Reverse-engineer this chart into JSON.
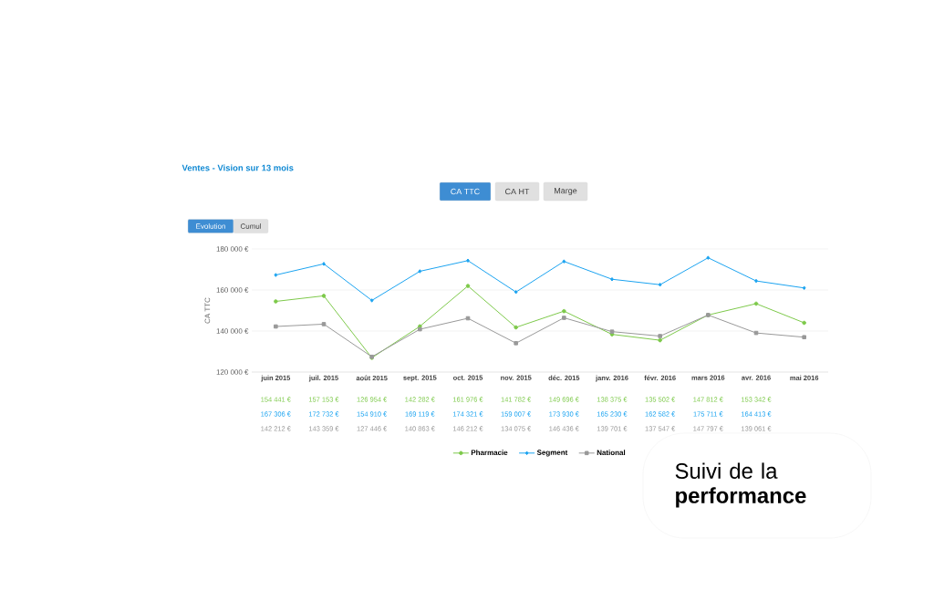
{
  "chart_data": {
    "type": "line",
    "title": "Ventes - Vision sur 13 mois",
    "ylabel": "CA TTC",
    "categories": [
      "juin 2015",
      "juil. 2015",
      "août 2015",
      "sept. 2015",
      "oct. 2015",
      "nov. 2015",
      "déc. 2015",
      "janv. 2016",
      "févr. 2016",
      "mars 2016",
      "avr. 2016",
      "mai 2016"
    ],
    "series": [
      {
        "name": "Pharmacie",
        "color": "#7dc94a",
        "marker": "circle",
        "values": [
          154441,
          157153,
          126954,
          142282,
          161976,
          141782,
          149696,
          138375,
          135502,
          147812,
          153342,
          144000
        ],
        "value_labels": [
          "154 441 €",
          "157 153 €",
          "126 954 €",
          "142 282 €",
          "161 976 €",
          "141 782 €",
          "149 696 €",
          "138 375 €",
          "135 502 €",
          "147 812 €",
          "153 342 €",
          null
        ]
      },
      {
        "name": "Segment",
        "color": "#1aa3f0",
        "marker": "diamond",
        "values": [
          167306,
          172732,
          154910,
          169119,
          174321,
          159007,
          173930,
          165230,
          162582,
          175711,
          164413,
          161000
        ],
        "value_labels": [
          "167 306 €",
          "172 732 €",
          "154 910 €",
          "169 119 €",
          "174 321 €",
          "159 007 €",
          "173 930 €",
          "165 230 €",
          "162 582 €",
          "175 711 €",
          "164 413 €",
          null
        ]
      },
      {
        "name": "National",
        "color": "#999999",
        "marker": "square",
        "values": [
          142212,
          143359,
          127446,
          140863,
          146212,
          134075,
          146436,
          139701,
          137547,
          147797,
          139061,
          137000
        ],
        "value_labels": [
          "142 212 €",
          "143 359 €",
          "127 446 €",
          "140 863 €",
          "146 212 €",
          "134 075 €",
          "146 436 €",
          "139 701 €",
          "137 547 €",
          "147 797 €",
          "139 061 €",
          null
        ]
      }
    ],
    "ylim": [
      120000,
      180000
    ],
    "yticks": [
      {
        "value": 120000,
        "label": "120 000 €"
      },
      {
        "value": 140000,
        "label": "140 000 €"
      },
      {
        "value": 160000,
        "label": "160 000 €"
      },
      {
        "value": 180000,
        "label": "180 000 €"
      }
    ],
    "grid": "y",
    "legend": "bottom",
    "line_style": "solid",
    "annotations": [
      "CA TTC",
      "CA HT",
      "Marge",
      "Evolution",
      "Cumul",
      "Suivi de la **performance**"
    ]
  }
}
